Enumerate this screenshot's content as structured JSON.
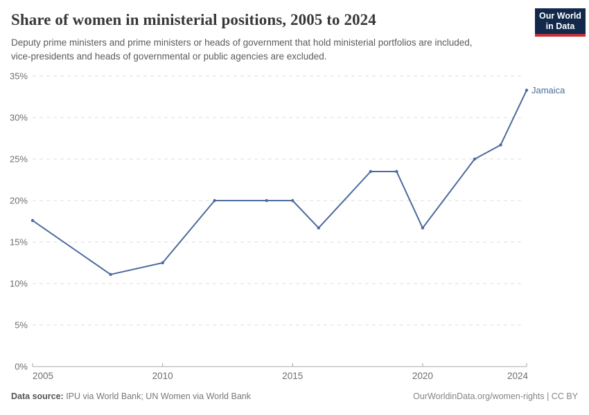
{
  "header": {
    "title": "Share of women in ministerial positions, 2005 to 2024",
    "subtitle": "Deputy prime ministers and prime ministers or heads of government that hold ministerial portfolios are included, vice-presidents and heads of governmental or public agencies are excluded."
  },
  "logo": {
    "line1": "Our World",
    "line2": "in Data",
    "bg_color": "#12294B",
    "accent_color": "#C8313A"
  },
  "chart_data": {
    "type": "line",
    "title": "Share of women in ministerial positions, 2005 to 2024",
    "series": [
      {
        "name": "Jamaica",
        "color": "#4C6A9C",
        "x": [
          2005,
          2008,
          2010,
          2012,
          2014,
          2015,
          2016,
          2018,
          2019,
          2020,
          2022,
          2023,
          2024
        ],
        "values": [
          17.6,
          11.1,
          12.5,
          20,
          20,
          20,
          16.7,
          23.5,
          23.5,
          16.7,
          25,
          26.7,
          33.3
        ]
      }
    ],
    "xlabel": "",
    "ylabel": "",
    "xlim": [
      2005,
      2024
    ],
    "ylim": [
      0,
      35
    ],
    "xticks": [
      2005,
      2010,
      2015,
      2020,
      2024
    ],
    "yticks": [
      0,
      5,
      10,
      15,
      20,
      25,
      30,
      35
    ],
    "ytick_suffix": "%",
    "grid": "horizontal-dashed",
    "gridline_color": "#dcdcdc",
    "axis_color": "#a8a8a8",
    "tick_label_color": "#6e6e6e",
    "legend_position": "end-of-line-label",
    "end_label": "Jamaica"
  },
  "footer": {
    "source_label": "Data source:",
    "source_text": " IPU via World Bank; UN Women via World Bank",
    "attribution": "OurWorldinData.org/women-rights | CC BY"
  }
}
